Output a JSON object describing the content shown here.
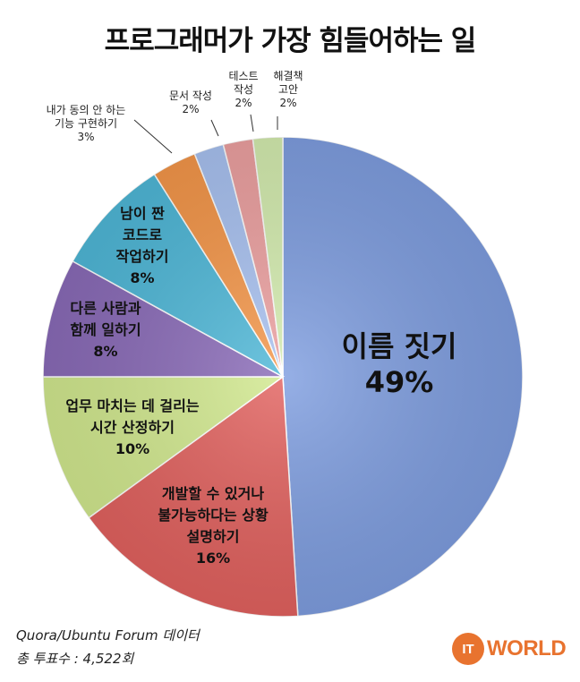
{
  "title": "프로그래머가 가장 힘들어하는 일",
  "source_line": "Quora/Ubuntu Forum 데이터",
  "votes_line": "총 투표수 : 4,522회",
  "logo": {
    "badge": "IT",
    "word": "WORLD"
  },
  "chart_data": {
    "type": "pie",
    "start_angle_deg": 0,
    "direction": "clockwise",
    "slices": [
      {
        "label": [
          "이름 짓기"
        ],
        "pct_text": "49%",
        "value": 49,
        "color": "#7f9ee0",
        "label_pos": "inside-large"
      },
      {
        "label": [
          "개발할 수 있거나",
          "불가능하다는 상황",
          "설명하기"
        ],
        "pct_text": "16%",
        "value": 16,
        "color": "#e2625f",
        "label_pos": "inside"
      },
      {
        "label": [
          "업무 마치는 데 걸리는",
          "시간 산정하기"
        ],
        "pct_text": "10%",
        "value": 10,
        "color": "#d2e98f",
        "label_pos": "inside"
      },
      {
        "label": [
          "다른 사람과",
          "함께 일하기"
        ],
        "pct_text": "8%",
        "value": 8,
        "color": "#8a6bb8",
        "label_pos": "inside"
      },
      {
        "label": [
          "남이 짠",
          "코드로",
          "작업하기"
        ],
        "pct_text": "8%",
        "value": 8,
        "color": "#4fb8d8",
        "label_pos": "inside"
      },
      {
        "label": [
          "내가 동의 안 하는",
          "기능 구현하기"
        ],
        "pct_text": "3%",
        "value": 3,
        "color": "#f5974a",
        "label_pos": "outside"
      },
      {
        "label": [
          "문서 작성"
        ],
        "pct_text": "2%",
        "value": 2,
        "color": "#a9c2f1",
        "label_pos": "outside"
      },
      {
        "label": [
          "테스트",
          "작성"
        ],
        "pct_text": "2%",
        "value": 2,
        "color": "#eda1a1",
        "label_pos": "outside"
      },
      {
        "label": [
          "해결책",
          "고안"
        ],
        "pct_text": "2%",
        "value": 2,
        "color": "#d5edb0",
        "label_pos": "outside"
      }
    ]
  }
}
